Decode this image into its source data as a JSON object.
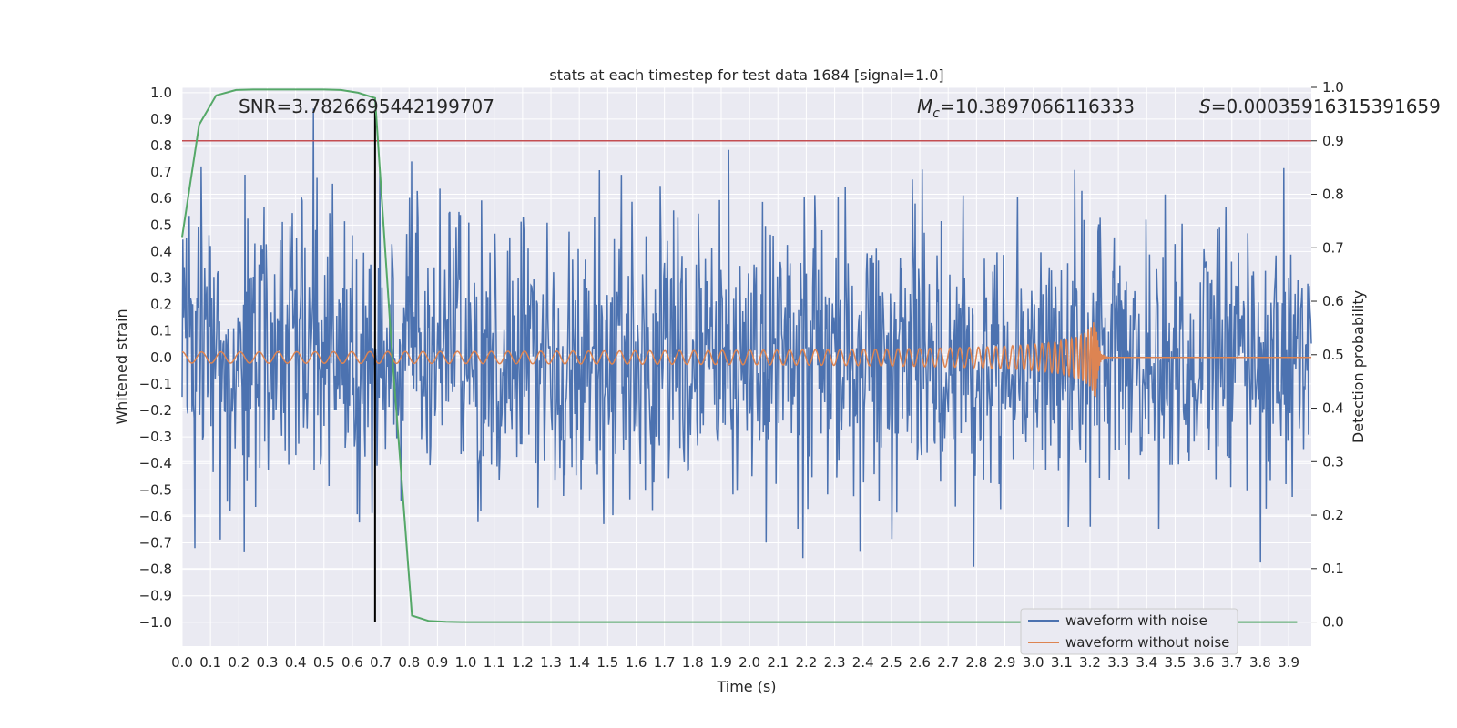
{
  "chart_data": {
    "type": "line",
    "title": "stats at each timestep for test data 1684 [signal=1.0]",
    "xlabel": "Time (s)",
    "ylabel": "Whitened strain",
    "y2label": "Detection probability",
    "xlim": [
      0.0,
      3.98
    ],
    "ylim": [
      -1.09,
      1.02
    ],
    "y2lim": [
      -0.045,
      1.0
    ],
    "x_ticks": [
      0.0,
      0.1,
      0.2,
      0.3,
      0.4,
      0.5,
      0.6,
      0.7,
      0.8,
      0.9,
      1.0,
      1.1,
      1.2,
      1.3,
      1.4,
      1.5,
      1.6,
      1.7,
      1.8,
      1.9,
      2.0,
      2.1,
      2.2,
      2.3,
      2.4,
      2.5,
      2.6,
      2.7,
      2.8,
      2.9,
      3.0,
      3.1,
      3.2,
      3.3,
      3.4,
      3.5,
      3.6,
      3.7,
      3.8,
      3.9
    ],
    "x_tick_labels": [
      "0.0",
      "0.1",
      "0.2",
      "0.3",
      "0.4",
      "0.5",
      "0.6",
      "0.7",
      "0.8",
      "0.9",
      "1.0",
      "1.1",
      "1.2",
      "1.3",
      "1.4",
      "1.5",
      "1.6",
      "1.7",
      "1.8",
      "1.9",
      "2.0",
      "2.1",
      "2.2",
      "2.3",
      "2.4",
      "2.5",
      "2.6",
      "2.7",
      "2.8",
      "2.9",
      "3.0",
      "3.1",
      "3.2",
      "3.3",
      "3.4",
      "3.5",
      "3.6",
      "3.7",
      "3.8",
      "3.9"
    ],
    "y_ticks": [
      -1.0,
      -0.9,
      -0.8,
      -0.7,
      -0.6,
      -0.5,
      -0.4,
      -0.3,
      -0.2,
      -0.1,
      0.0,
      0.1,
      0.2,
      0.3,
      0.4,
      0.5,
      0.6,
      0.7,
      0.8,
      0.9,
      1.0
    ],
    "y_tick_labels": [
      "−1.0",
      "−0.9",
      "−0.8",
      "−0.7",
      "−0.6",
      "−0.5",
      "−0.4",
      "−0.3",
      "−0.2",
      "−0.1",
      "0.0",
      "0.1",
      "0.2",
      "0.3",
      "0.4",
      "0.5",
      "0.6",
      "0.7",
      "0.8",
      "0.9",
      "1.0"
    ],
    "y2_ticks": [
      0.0,
      0.1,
      0.2,
      0.3,
      0.4,
      0.5,
      0.6,
      0.7,
      0.8,
      0.9,
      1.0
    ],
    "y2_tick_labels": [
      "0.0",
      "0.1",
      "0.2",
      "0.3",
      "0.4",
      "0.5",
      "0.6",
      "0.7",
      "0.8",
      "0.9",
      "1.0"
    ],
    "annotations": {
      "snr": "SNR=3.7826695442199707",
      "mc_symbol": "M",
      "mc_sub": "c",
      "mc_value": "=10.3897066116333",
      "s_symbol": "S",
      "s_value": "=0.00035916315391659"
    },
    "threshold_line": {
      "y2": 0.9,
      "color": "#c44e52"
    },
    "event_marker": {
      "x": 0.68,
      "color": "#000000"
    },
    "detection_probability": {
      "color": "#55a868",
      "x": [
        0.0,
        0.06,
        0.12,
        0.19,
        0.25,
        0.31,
        0.37,
        0.43,
        0.5,
        0.56,
        0.62,
        0.68,
        0.74,
        0.81,
        0.87,
        0.93,
        1.0,
        1.5,
        2.0,
        2.5,
        3.0,
        3.5,
        3.93
      ],
      "y": [
        0.72,
        0.93,
        0.985,
        0.995,
        0.996,
        0.996,
        0.996,
        0.996,
        0.996,
        0.995,
        0.99,
        0.98,
        0.5,
        0.012,
        0.002,
        0.0005,
        0.0,
        0.0,
        0.0,
        0.0,
        0.0,
        0.0,
        0.0
      ]
    },
    "series": [
      {
        "name": "waveform with noise",
        "color": "#4c72b0",
        "noise_std": 0.26,
        "n_points": 1600,
        "x_range": [
          0.0,
          3.98
        ]
      },
      {
        "name": "waveform without noise",
        "color": "#dd8452",
        "merger_time": 3.22,
        "merger_amplitude": 0.16,
        "base_amplitude": 0.012,
        "x_range": [
          0.0,
          3.98
        ]
      }
    ],
    "legend": {
      "position": "lower-right",
      "entries": [
        "waveform with noise",
        "waveform without noise"
      ]
    }
  }
}
